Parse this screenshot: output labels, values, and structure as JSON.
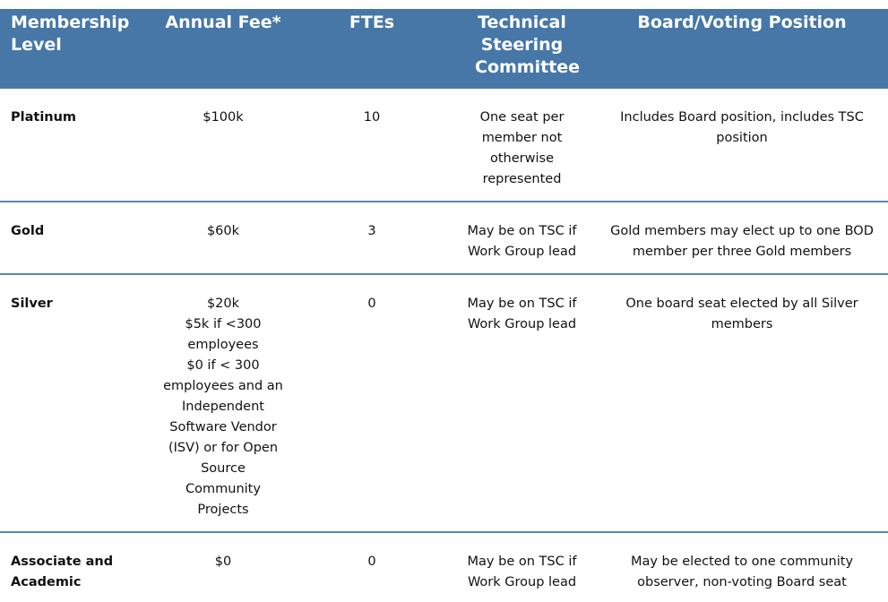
{
  "headers": [
    "Membership Level",
    "Annual Fee*",
    "FTEs",
    "Technical Steering Committee",
    "Board/Voting Position"
  ],
  "rows": [
    {
      "level": "Platinum",
      "fee": [
        "$100k"
      ],
      "ftes": "10",
      "tsc": "One seat per member not otherwise represented",
      "board": "Includes Board position, includes TSC position"
    },
    {
      "level": "Gold",
      "fee": [
        "$60k"
      ],
      "ftes": "3",
      "tsc": "May be on TSC if Work Group lead",
      "board": "Gold members may elect up to one BOD member per three Gold members"
    },
    {
      "level": "Silver",
      "fee": [
        "$20k",
        "$5k if <300 employees",
        "$0 if < 300 employees and an Independent Software Vendor (ISV) or for Open Source Community Projects"
      ],
      "ftes": "0",
      "tsc": "May be on TSC if Work Group lead",
      "board": "One board seat elected by all Silver members"
    },
    {
      "level": "Associate and Academic",
      "fee": [
        "$0"
      ],
      "ftes": "0",
      "tsc": "May be on TSC if Work Group lead",
      "board": "May be elected to one community observer, non-voting Board seat"
    }
  ],
  "colors": {
    "header_bg": "#4677a6",
    "row_divider": "#5b86b1"
  }
}
